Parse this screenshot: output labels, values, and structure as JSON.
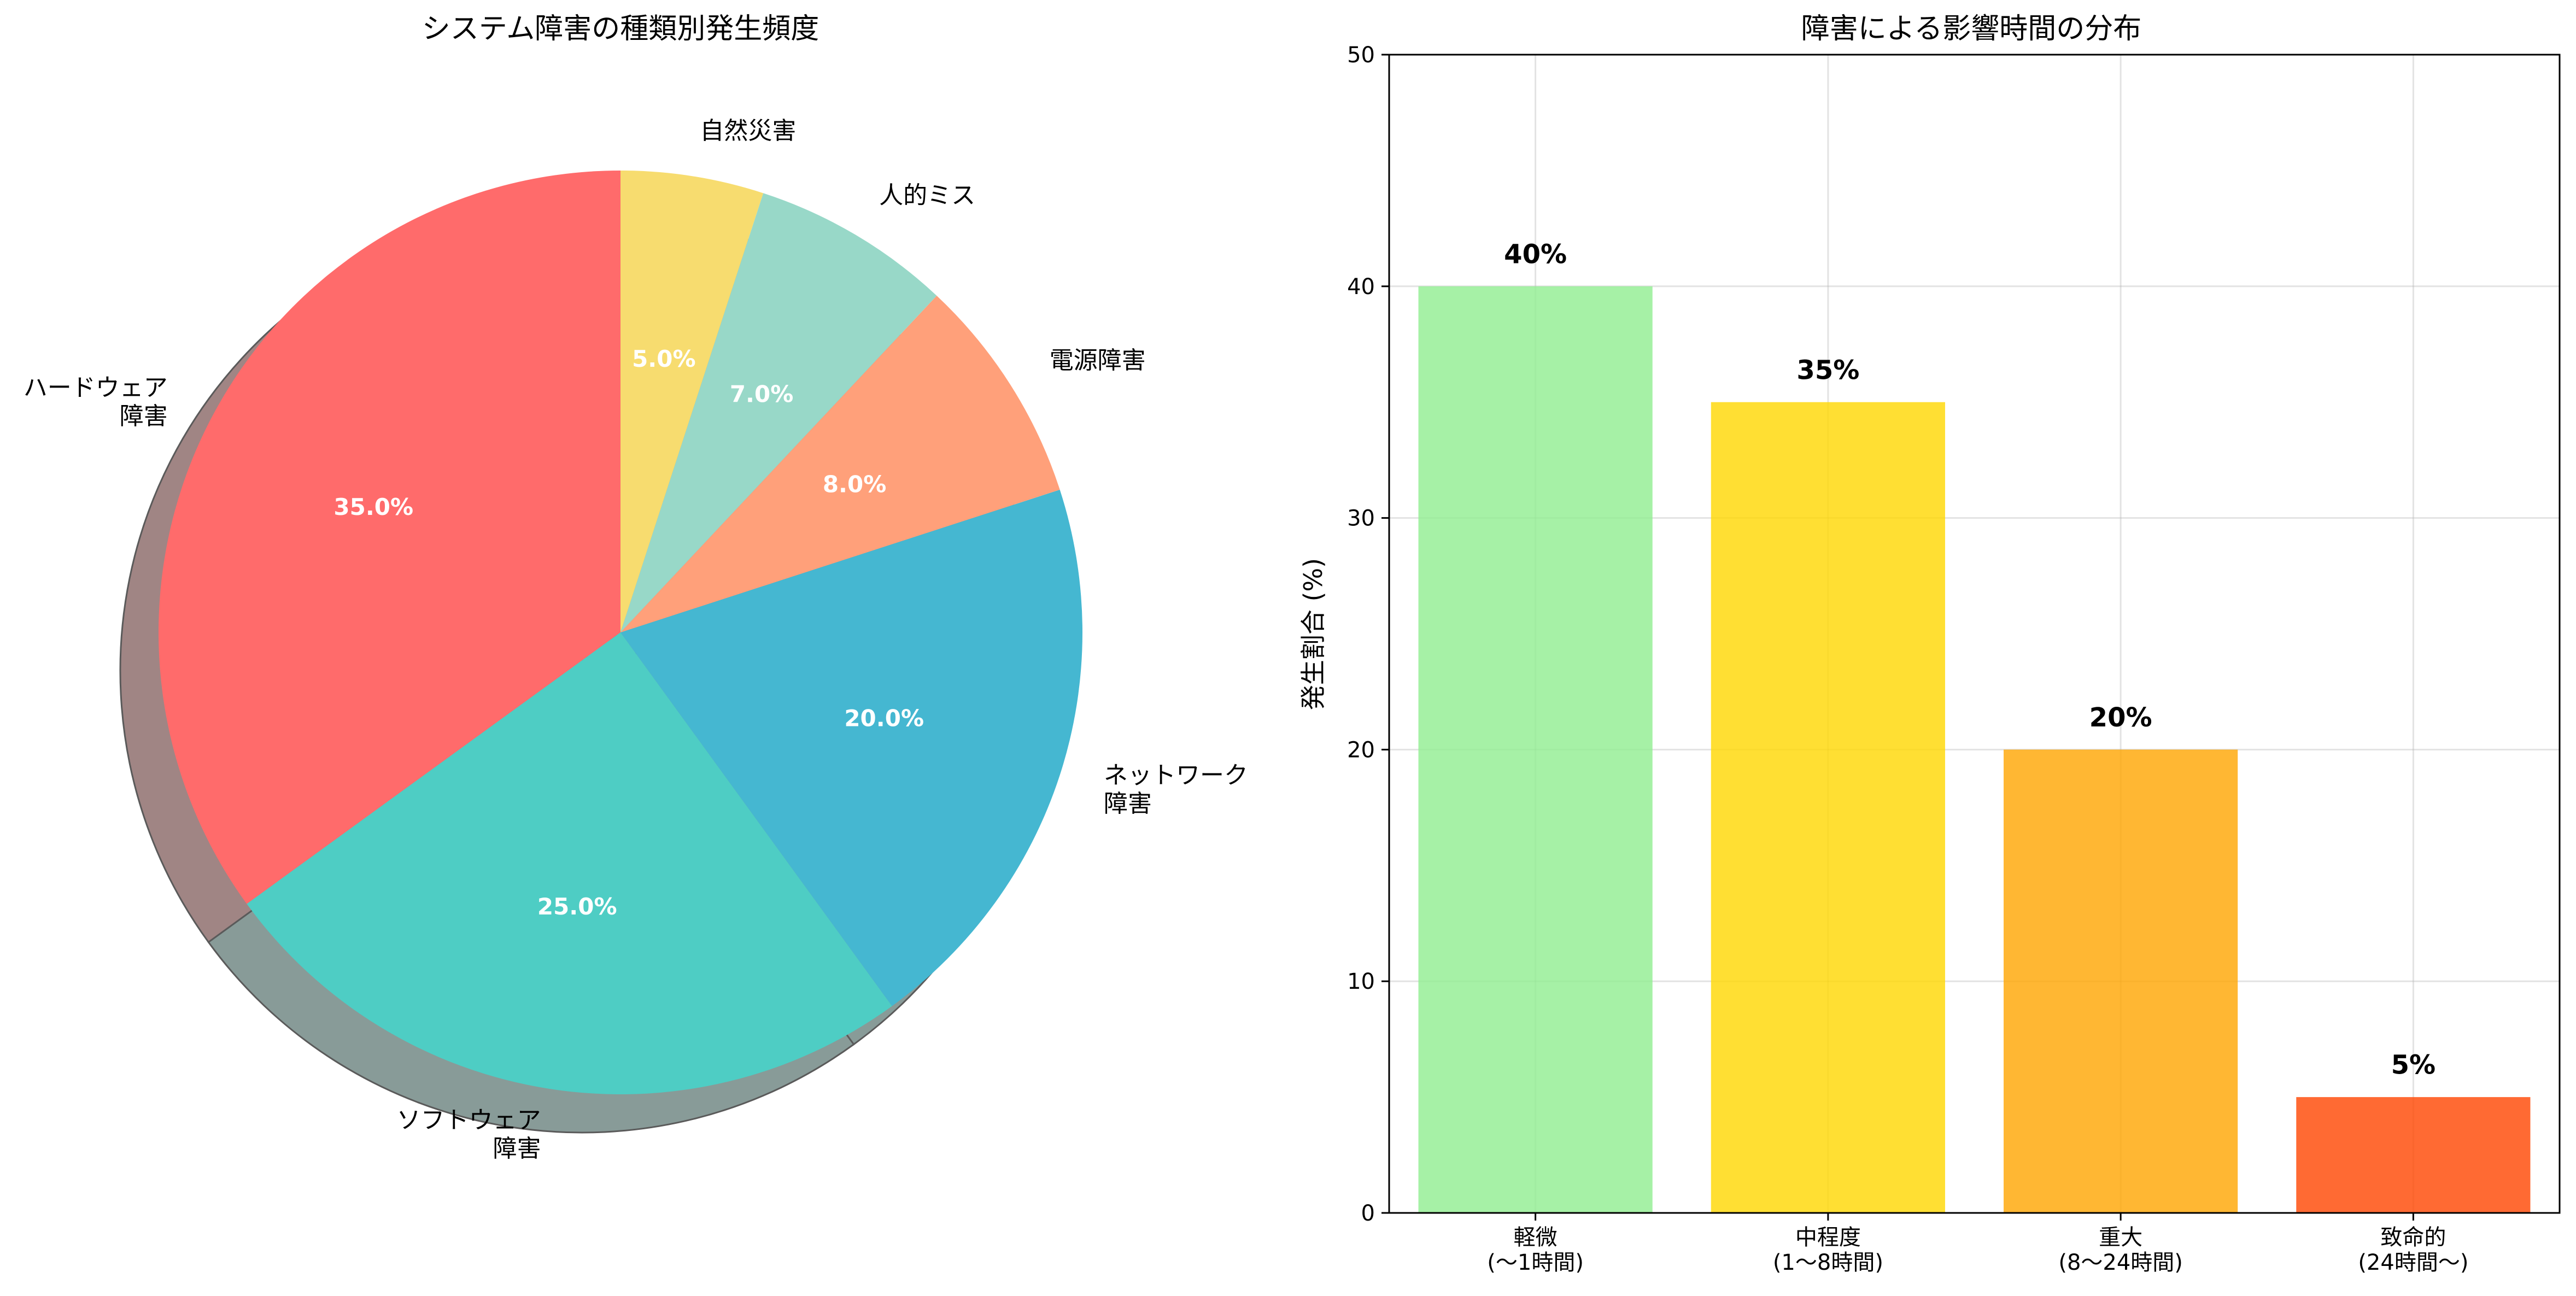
{
  "chart_data": [
    {
      "type": "pie",
      "title": "システム障害の種類別発生頻度",
      "slices": [
        {
          "label": "ハードウェア障害",
          "label_lines": [
            "ハードウェア",
            "障害"
          ],
          "value": 35.0,
          "pct_label": "35.0%",
          "color": "#FF6B6B",
          "shadow_color": "#A08584"
        },
        {
          "label": "ソフトウェア障害",
          "label_lines": [
            "ソフトウェア",
            "障害"
          ],
          "value": 25.0,
          "pct_label": "25.0%",
          "color": "#4ECDC4",
          "shadow_color": "#889B98"
        },
        {
          "label": "ネットワーク障害",
          "label_lines": [
            "ネットワーク",
            "障害"
          ],
          "value": 20.0,
          "pct_label": "20.0%",
          "color": "#45B7D1",
          "shadow_color": "#889B98"
        },
        {
          "label": "電源障害",
          "label_lines": [
            "電源障害"
          ],
          "value": 8.0,
          "pct_label": "8.0%",
          "color": "#FFA07A",
          "shadow_color": "#889B98"
        },
        {
          "label": "人的ミス",
          "label_lines": [
            "人的ミス"
          ],
          "value": 7.0,
          "pct_label": "7.0%",
          "color": "#98D8C8",
          "shadow_color": "#889B98"
        },
        {
          "label": "自然災害",
          "label_lines": [
            "自然災害"
          ],
          "value": 5.0,
          "pct_label": "5.0%",
          "color": "#F7DC6F",
          "shadow_color": "#889B98"
        }
      ],
      "start_angle_deg": 90,
      "direction": "counterclockwise",
      "shadow": true
    },
    {
      "type": "bar",
      "title": "障害による影響時間の分布",
      "ylabel": "発生割合 (%)",
      "xlabel": "",
      "ylim": [
        0,
        50
      ],
      "yticks": [
        0,
        10,
        20,
        30,
        40,
        50
      ],
      "grid": true,
      "categories": [
        "軽微\n(〜1時間)",
        "中程度\n(1〜8時間)",
        "重大\n(8〜24時間)",
        "致命的\n(24時間〜)"
      ],
      "category_lines": [
        [
          "軽微",
          "(〜1時間)"
        ],
        [
          "中程度",
          "(1〜8時間)"
        ],
        [
          "重大",
          "(8〜24時間)"
        ],
        [
          "致命的",
          "(24時間〜)"
        ]
      ],
      "values": [
        40,
        35,
        20,
        5
      ],
      "value_labels": [
        "40%",
        "35%",
        "20%",
        "5%"
      ],
      "colors": [
        "#90EE90",
        "#FFD700",
        "#FFA500",
        "#FF4500"
      ]
    }
  ]
}
